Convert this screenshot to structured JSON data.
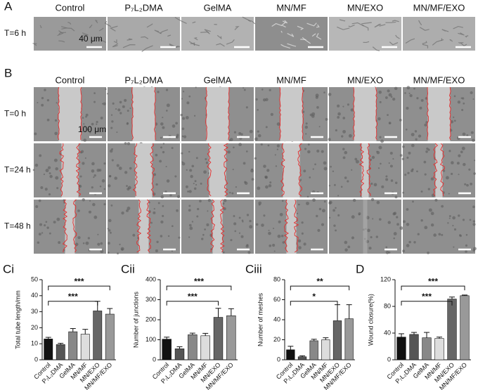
{
  "panel_a": {
    "label": "A",
    "columns": [
      "Control",
      "P₇L₂DMA",
      "GelMA",
      "MN/MF",
      "MN/EXO",
      "MN/MF/EXO"
    ],
    "rows": [
      "T=6 h"
    ],
    "scale_bar": "40 μm"
  },
  "panel_b": {
    "label": "B",
    "columns": [
      "Control",
      "P₇L₂DMA",
      "GelMA",
      "MN/MF",
      "MN/EXO",
      "MN/MF/EXO"
    ],
    "rows": [
      "T=0 h",
      "T=24 h",
      "T=48 h"
    ],
    "scale_bar": "100 μm"
  },
  "chart_data": [
    {
      "type": "bar",
      "label": "Ci",
      "y_label": "Total tube length/mm",
      "categories": [
        "Control",
        "P₇L₂DMA",
        "GelMA",
        "MN/MF",
        "MN/EXO",
        "MN/MF/EXO"
      ],
      "values": [
        13,
        9.5,
        17.5,
        16,
        30.5,
        28.5
      ],
      "errors": [
        1,
        0.8,
        2,
        3,
        6,
        3.5
      ],
      "colors": [
        "#111111",
        "#555555",
        "#888888",
        "#dddddd",
        "#666666",
        "#999999"
      ],
      "ylim": [
        0,
        50
      ],
      "yticks": [
        0,
        10,
        20,
        30,
        40,
        50
      ],
      "significance": [
        {
          "text": "***",
          "between": [
            "Control",
            "MN/EXO"
          ]
        },
        {
          "text": "***",
          "between": [
            "Control",
            "MN/MF/EXO"
          ]
        }
      ]
    },
    {
      "type": "bar",
      "label": "Cii",
      "y_label": "Number of junctions",
      "categories": [
        "Control",
        "P₇L₂DMA",
        "GelMA",
        "MN/MF",
        "MN/EXO",
        "MN/MF/EXO"
      ],
      "values": [
        103,
        55,
        125,
        120,
        212,
        220
      ],
      "errors": [
        10,
        10,
        8,
        12,
        45,
        35
      ],
      "colors": [
        "#111111",
        "#555555",
        "#888888",
        "#dddddd",
        "#666666",
        "#999999"
      ],
      "ylim": [
        0,
        400
      ],
      "yticks": [
        0,
        100,
        200,
        300,
        400
      ],
      "significance": [
        {
          "text": "***",
          "between": [
            "Control",
            "MN/EXO"
          ]
        },
        {
          "text": "***",
          "between": [
            "Control",
            "MN/MF/EXO"
          ]
        }
      ]
    },
    {
      "type": "bar",
      "label": "Ciii",
      "y_label": "Number of meshes",
      "categories": [
        "Control",
        "P₇L₂DMA",
        "GelMA",
        "MN/MF",
        "MN/EXO",
        "MN/MF/EXO"
      ],
      "values": [
        10,
        3,
        19,
        20,
        39,
        41
      ],
      "errors": [
        3.5,
        1,
        1.5,
        2,
        16,
        14
      ],
      "colors": [
        "#111111",
        "#555555",
        "#888888",
        "#dddddd",
        "#666666",
        "#999999"
      ],
      "ylim": [
        0,
        80
      ],
      "yticks": [
        0,
        20,
        40,
        60,
        80
      ],
      "significance": [
        {
          "text": "*",
          "between": [
            "Control",
            "MN/EXO"
          ]
        },
        {
          "text": "**",
          "between": [
            "Control",
            "MN/MF/EXO"
          ]
        }
      ]
    },
    {
      "type": "bar",
      "label": "D",
      "y_label": "Wound closure(%)",
      "categories": [
        "Control",
        "P₇L₂DMA",
        "GelMA",
        "MN/MF",
        "MN/EXO",
        "MN/MF/EXO"
      ],
      "values": [
        34,
        38,
        33,
        32,
        91,
        96
      ],
      "errors": [
        5,
        3,
        8,
        2,
        3,
        1
      ],
      "colors": [
        "#111111",
        "#555555",
        "#888888",
        "#dddddd",
        "#666666",
        "#999999"
      ],
      "ylim": [
        0,
        120
      ],
      "yticks": [
        0,
        40,
        80,
        120
      ],
      "significance": [
        {
          "text": "***",
          "between": [
            "Control",
            "MN/EXO"
          ]
        },
        {
          "text": "***",
          "between": [
            "Control",
            "MN/MF/EXO"
          ]
        }
      ]
    }
  ]
}
